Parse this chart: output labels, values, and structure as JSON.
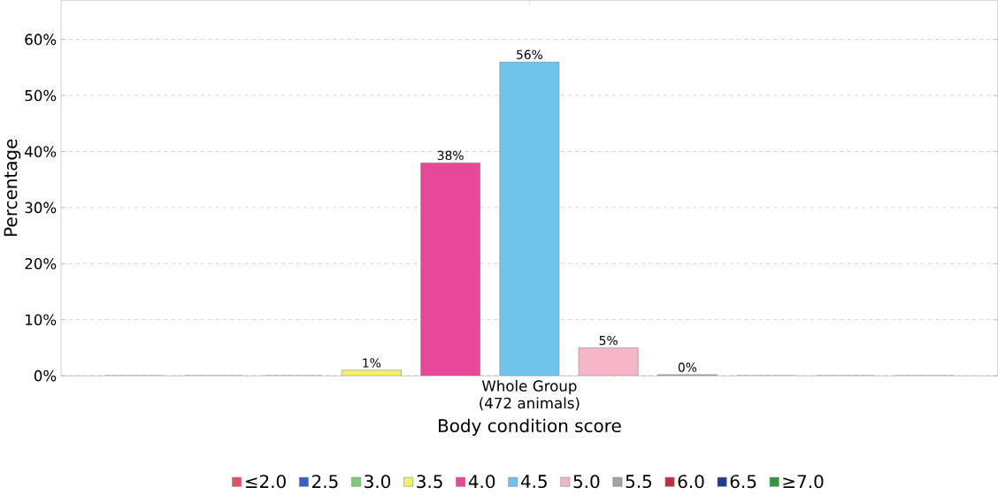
{
  "chart_data": {
    "type": "bar",
    "xlabel": "Body condition score",
    "ylabel": "Percentage",
    "categories": [
      "Whole Group (472 animals)"
    ],
    "series": [
      {
        "name": "≤2.0",
        "color": "#e8505b",
        "values": [
          0
        ]
      },
      {
        "name": "2.5",
        "color": "#3a5fcd",
        "values": [
          0
        ]
      },
      {
        "name": "3.0",
        "color": "#7dc97d",
        "values": [
          0
        ]
      },
      {
        "name": "3.5",
        "color": "#f4f06a",
        "values": [
          1
        ],
        "value_labels": [
          "1%"
        ]
      },
      {
        "name": "4.0",
        "color": "#e8489a",
        "values": [
          38
        ],
        "value_labels": [
          "38%"
        ]
      },
      {
        "name": "4.5",
        "color": "#6ec4ea",
        "values": [
          56
        ],
        "value_labels": [
          "56%"
        ]
      },
      {
        "name": "5.0",
        "color": "#f7b6c8",
        "values": [
          5
        ],
        "value_labels": [
          "5%"
        ]
      },
      {
        "name": "5.5",
        "color": "#a0a4a8",
        "values": [
          0.2
        ],
        "value_labels": [
          "0%"
        ]
      },
      {
        "name": "6.0",
        "color": "#c0303a",
        "values": [
          0
        ]
      },
      {
        "name": "6.5",
        "color": "#1f3d8c",
        "values": [
          0
        ]
      },
      {
        "name": "≥7.0",
        "color": "#2e9a3e",
        "values": [
          0
        ]
      }
    ],
    "ylim": [
      0,
      67
    ],
    "yticks": [
      {
        "value": 0,
        "label": "0%"
      },
      {
        "value": 10,
        "label": "10%"
      },
      {
        "value": 20,
        "label": "20%"
      },
      {
        "value": 30,
        "label": "30%"
      },
      {
        "value": 40,
        "label": "40%"
      },
      {
        "value": 50,
        "label": "50%"
      },
      {
        "value": 60,
        "label": "60%"
      }
    ],
    "grid": "y",
    "legend": "bottom"
  }
}
